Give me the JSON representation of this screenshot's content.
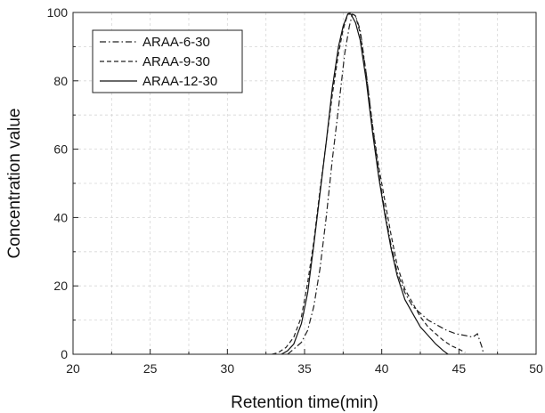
{
  "chart_data": {
    "type": "line",
    "title": "",
    "xlabel": "Retention time(min)",
    "ylabel": "Concentration value",
    "xlim": [
      20,
      50
    ],
    "ylim": [
      0,
      100
    ],
    "x_ticks": [
      "20",
      "25",
      "30",
      "35",
      "40",
      "45",
      "50"
    ],
    "y_ticks": [
      "0",
      "20",
      "40",
      "60",
      "80",
      "100"
    ],
    "grid": true,
    "legend_position": "top-left",
    "series": [
      {
        "name": "ARAA-6-30",
        "dash": "dashdot",
        "color": "#222222",
        "points": [
          [
            33.9,
            0
          ],
          [
            34.3,
            1.5
          ],
          [
            34.8,
            3.5
          ],
          [
            35.2,
            7
          ],
          [
            35.6,
            14
          ],
          [
            36.0,
            25
          ],
          [
            36.4,
            40
          ],
          [
            36.8,
            57
          ],
          [
            37.2,
            72
          ],
          [
            37.6,
            88
          ],
          [
            37.9,
            96
          ],
          [
            38.1,
            99.5
          ],
          [
            38.3,
            99
          ],
          [
            38.6,
            95
          ],
          [
            39.0,
            82
          ],
          [
            39.4,
            67
          ],
          [
            39.8,
            53
          ],
          [
            40.2,
            42
          ],
          [
            40.6,
            32
          ],
          [
            41.0,
            24
          ],
          [
            41.5,
            18
          ],
          [
            42.0,
            14
          ],
          [
            42.5,
            12
          ],
          [
            43.0,
            10
          ],
          [
            43.6,
            8.5
          ],
          [
            44.2,
            7
          ],
          [
            44.8,
            6
          ],
          [
            45.4,
            5.5
          ],
          [
            45.9,
            5
          ],
          [
            46.2,
            6
          ],
          [
            46.5,
            2
          ],
          [
            46.6,
            0
          ]
        ]
      },
      {
        "name": "ARAA-9-30",
        "dash": "dashed",
        "color": "#222222",
        "points": [
          [
            32.9,
            0
          ],
          [
            33.3,
            0.5
          ],
          [
            33.8,
            2
          ],
          [
            34.3,
            5
          ],
          [
            34.8,
            11
          ],
          [
            35.2,
            21
          ],
          [
            35.6,
            33
          ],
          [
            36.0,
            48
          ],
          [
            36.4,
            62
          ],
          [
            36.8,
            76
          ],
          [
            37.2,
            88
          ],
          [
            37.5,
            95
          ],
          [
            37.8,
            99.5
          ],
          [
            38.0,
            100
          ],
          [
            38.3,
            99
          ],
          [
            38.6,
            94
          ],
          [
            39.0,
            82
          ],
          [
            39.4,
            67
          ],
          [
            39.8,
            55
          ],
          [
            40.2,
            45
          ],
          [
            40.6,
            35
          ],
          [
            41.0,
            26
          ],
          [
            41.5,
            19
          ],
          [
            42.0,
            15
          ],
          [
            42.5,
            11
          ],
          [
            43.0,
            8
          ],
          [
            43.5,
            6
          ],
          [
            44.0,
            4
          ],
          [
            44.5,
            2.5
          ],
          [
            45.0,
            1.5
          ],
          [
            45.4,
            0.5
          ]
        ]
      },
      {
        "name": "ARAA-12-30",
        "dash": "solid",
        "color": "#111111",
        "points": [
          [
            33.5,
            0
          ],
          [
            33.9,
            1
          ],
          [
            34.3,
            3
          ],
          [
            34.8,
            9
          ],
          [
            35.2,
            18
          ],
          [
            35.6,
            32
          ],
          [
            36.0,
            47
          ],
          [
            36.4,
            62
          ],
          [
            36.8,
            78
          ],
          [
            37.2,
            90
          ],
          [
            37.5,
            96
          ],
          [
            37.8,
            99.5
          ],
          [
            38.0,
            99.5
          ],
          [
            38.3,
            97
          ],
          [
            38.6,
            92
          ],
          [
            39.0,
            80
          ],
          [
            39.4,
            65
          ],
          [
            39.8,
            52
          ],
          [
            40.2,
            41
          ],
          [
            40.6,
            31
          ],
          [
            41.0,
            23
          ],
          [
            41.5,
            16
          ],
          [
            42.0,
            12
          ],
          [
            42.5,
            8
          ],
          [
            43.0,
            5.5
          ],
          [
            43.5,
            3
          ],
          [
            44.0,
            1
          ],
          [
            44.3,
            0
          ]
        ]
      }
    ]
  }
}
